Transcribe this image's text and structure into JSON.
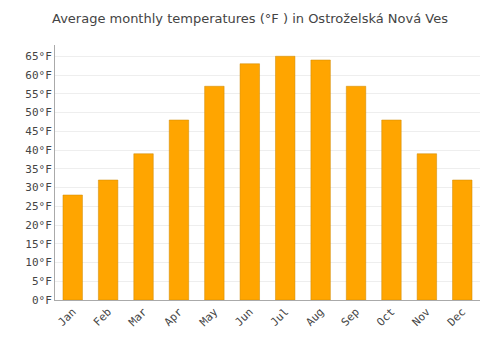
{
  "chart_data": {
    "type": "bar",
    "title": "Average monthly temperatures (°F ) in Ostroželská Nová Ves",
    "categories": [
      "Jan",
      "Feb",
      "Mar",
      "Apr",
      "May",
      "Jun",
      "Jul",
      "Aug",
      "Sep",
      "Oct",
      "Nov",
      "Dec"
    ],
    "values": [
      28,
      32,
      39,
      48,
      57,
      63,
      65,
      64,
      57,
      48,
      39,
      32
    ],
    "color": "#FFA500",
    "ylim": [
      0,
      68
    ],
    "yticks": [
      {
        "value": 0,
        "label": "0°F"
      },
      {
        "value": 5,
        "label": "5°F"
      },
      {
        "value": 10,
        "label": "10°F"
      },
      {
        "value": 15,
        "label": "15°F"
      },
      {
        "value": 20,
        "label": "20°F"
      },
      {
        "value": 25,
        "label": "25°F"
      },
      {
        "value": 30,
        "label": "30°F"
      },
      {
        "value": 35,
        "label": "35°F"
      },
      {
        "value": 40,
        "label": "40°F"
      },
      {
        "value": 45,
        "label": "45°F"
      },
      {
        "value": 50,
        "label": "50°F"
      },
      {
        "value": 55,
        "label": "55°F"
      },
      {
        "value": 60,
        "label": "60°F"
      },
      {
        "value": 65,
        "label": "65°F"
      }
    ],
    "grid": true
  }
}
